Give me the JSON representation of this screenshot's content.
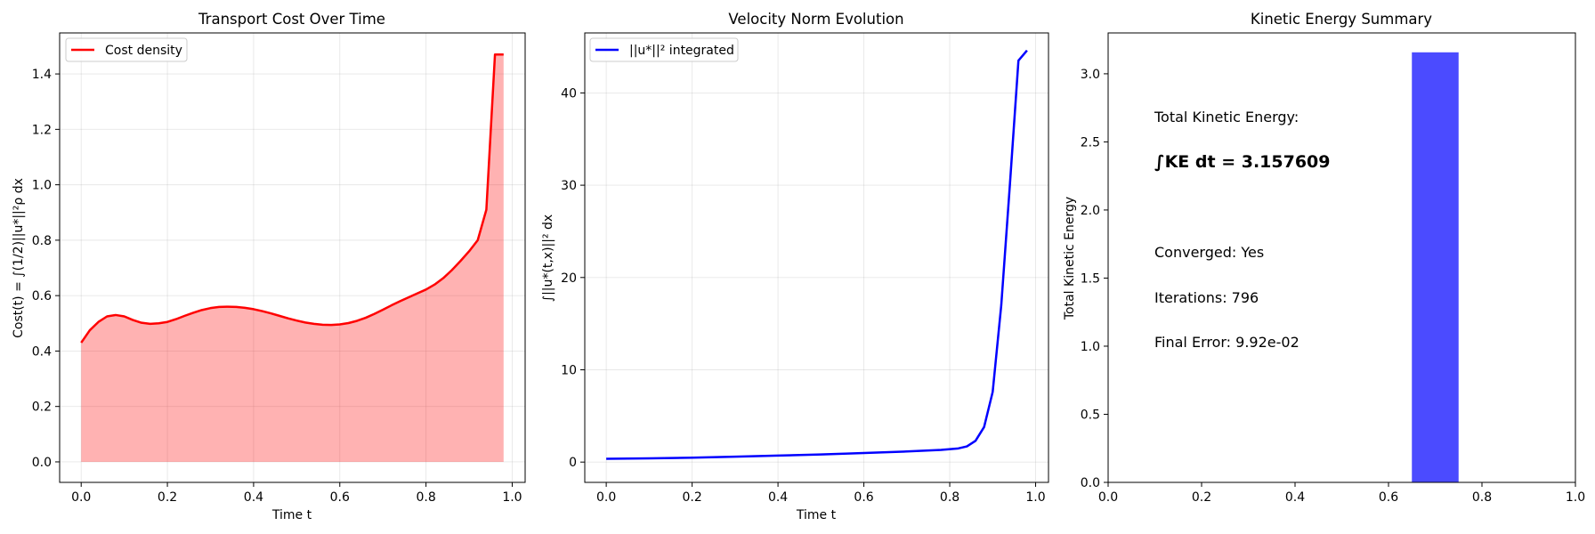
{
  "chart_data": [
    {
      "type": "area",
      "title": "Transport Cost Over Time",
      "xlabel": "Time t",
      "ylabel": "Cost(t) = ∫(1/2)||u*||²ρ dx",
      "xlim": [
        -0.05,
        1.03
      ],
      "ylim": [
        -0.074,
        1.548
      ],
      "xticks": [
        0.0,
        0.2,
        0.4,
        0.6,
        0.8,
        1.0
      ],
      "xtick_labels": [
        "0.0",
        "0.2",
        "0.4",
        "0.6",
        "0.8",
        "1.0"
      ],
      "yticks": [
        0.0,
        0.2,
        0.4,
        0.6,
        0.8,
        1.0,
        1.2,
        1.4
      ],
      "ytick_labels": [
        "0.0",
        "0.2",
        "0.4",
        "0.6",
        "0.8",
        "1.0",
        "1.2",
        "1.4"
      ],
      "grid": true,
      "legend_position": "top-left",
      "series": [
        {
          "name": "Cost density",
          "color": "#ff0000",
          "fill_color": "#ff0000",
          "x": [
            0.0,
            0.02,
            0.04,
            0.06,
            0.08,
            0.1,
            0.12,
            0.14,
            0.16,
            0.18,
            0.2,
            0.22,
            0.24,
            0.26,
            0.28,
            0.3,
            0.32,
            0.34,
            0.36,
            0.38,
            0.4,
            0.42,
            0.44,
            0.46,
            0.48,
            0.5,
            0.52,
            0.54,
            0.56,
            0.58,
            0.6,
            0.62,
            0.64,
            0.66,
            0.68,
            0.7,
            0.72,
            0.74,
            0.76,
            0.78,
            0.8,
            0.82,
            0.84,
            0.86,
            0.88,
            0.9,
            0.92,
            0.94,
            0.96,
            0.98
          ],
          "values": [
            0.43,
            0.475,
            0.505,
            0.525,
            0.53,
            0.525,
            0.512,
            0.502,
            0.498,
            0.5,
            0.505,
            0.515,
            0.527,
            0.538,
            0.548,
            0.555,
            0.559,
            0.56,
            0.559,
            0.556,
            0.551,
            0.544,
            0.536,
            0.527,
            0.518,
            0.51,
            0.503,
            0.498,
            0.495,
            0.494,
            0.496,
            0.501,
            0.509,
            0.52,
            0.534,
            0.549,
            0.565,
            0.58,
            0.594,
            0.608,
            0.622,
            0.64,
            0.663,
            0.692,
            0.725,
            0.76,
            0.8,
            0.91,
            1.47,
            1.47
          ]
        }
      ]
    },
    {
      "type": "line",
      "title": "Velocity Norm Evolution",
      "xlabel": "Time t",
      "ylabel": "∫||u*(t,x)||² dx",
      "xlim": [
        -0.05,
        1.03
      ],
      "ylim": [
        -2.2,
        46.5
      ],
      "xticks": [
        0.0,
        0.2,
        0.4,
        0.6,
        0.8,
        1.0
      ],
      "xtick_labels": [
        "0.0",
        "0.2",
        "0.4",
        "0.6",
        "0.8",
        "1.0"
      ],
      "yticks": [
        0,
        10,
        20,
        30,
        40
      ],
      "ytick_labels": [
        "0",
        "10",
        "20",
        "30",
        "40"
      ],
      "grid": true,
      "legend_position": "top-left",
      "series": [
        {
          "name": "||u*||² integrated",
          "color": "#0000ff",
          "x": [
            0.0,
            0.1,
            0.2,
            0.3,
            0.4,
            0.5,
            0.6,
            0.7,
            0.78,
            0.82,
            0.84,
            0.86,
            0.88,
            0.9,
            0.92,
            0.94,
            0.96,
            0.98
          ],
          "values": [
            0.35,
            0.4,
            0.48,
            0.58,
            0.7,
            0.82,
            0.98,
            1.15,
            1.32,
            1.48,
            1.7,
            2.3,
            3.8,
            7.6,
            17.0,
            30.0,
            43.5,
            44.6
          ]
        }
      ]
    },
    {
      "type": "bar",
      "title": "Kinetic Energy Summary",
      "xlabel": "",
      "ylabel": "Total Kinetic Energy",
      "xlim": [
        0.0,
        1.0
      ],
      "ylim": [
        0.0,
        3.3
      ],
      "xticks": [
        0.0,
        0.2,
        0.4,
        0.6,
        0.8,
        1.0
      ],
      "xtick_labels": [
        "0.0",
        "0.2",
        "0.4",
        "0.6",
        "0.8",
        "1.0"
      ],
      "yticks": [
        0.0,
        0.5,
        1.0,
        1.5,
        2.0,
        2.5,
        3.0
      ],
      "ytick_labels": [
        "0.0",
        "0.5",
        "1.0",
        "1.5",
        "2.0",
        "2.5",
        "3.0"
      ],
      "grid": false,
      "bars": [
        {
          "x_start": 0.65,
          "x_end": 0.75,
          "value": 3.157609,
          "color": "#4b4bff"
        }
      ],
      "annotations": {
        "heading": "Total Kinetic Energy:",
        "energy": "∫KE dt = 3.157609",
        "converged": "Converged: Yes",
        "iterations": "Iterations: 796",
        "final_error": "Final Error: 9.92e-02"
      }
    }
  ]
}
